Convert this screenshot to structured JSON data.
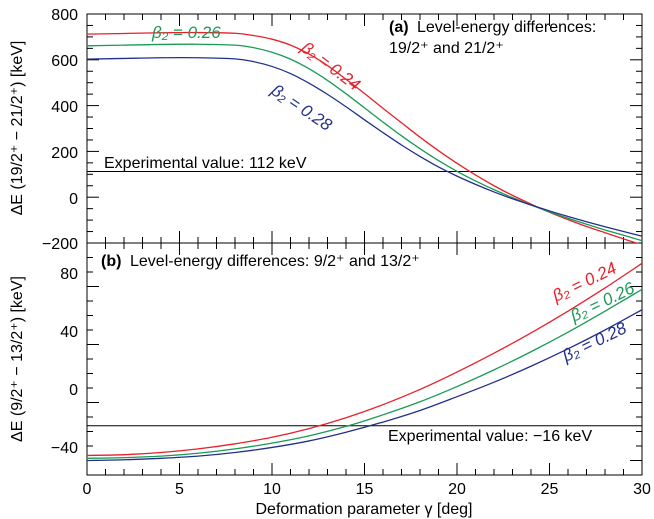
{
  "chart_data": [
    {
      "type": "line",
      "panel": "a",
      "title_bold": "(a)",
      "title_line1": "Level-energy differences:",
      "title_line2": "19/2⁺ and 21/2⁺",
      "ylabel": "ΔE (19/2⁺ − 21/2⁺) [keV]",
      "xlim": [
        0,
        30
      ],
      "ylim": [
        -200,
        800
      ],
      "y_ticks": [
        "−200",
        "0",
        "200",
        "400",
        "600",
        "800"
      ],
      "series": [
        {
          "name": "β₂ = 0.24",
          "color": "#e8202a",
          "x": [
            0,
            2,
            4,
            6,
            8,
            9,
            10,
            11,
            12,
            13,
            14,
            15,
            16,
            17,
            18,
            19,
            20,
            21,
            22,
            23,
            24,
            25,
            26,
            27,
            28,
            29,
            30
          ],
          "y": [
            712,
            715,
            718,
            719,
            716,
            706,
            690,
            664,
            625,
            575,
            515,
            453,
            388,
            325,
            262,
            203,
            148,
            97,
            50,
            8,
            -30,
            -66,
            -98,
            -128,
            -155,
            -182,
            -208
          ]
        },
        {
          "name": "β₂ = 0.26",
          "color": "#1a9a55",
          "x": [
            0,
            2,
            4,
            6,
            8,
            9,
            10,
            11,
            12,
            13,
            14,
            15,
            16,
            17,
            18,
            19,
            20,
            21,
            22,
            23,
            24,
            25,
            26,
            27,
            28,
            29,
            30
          ],
          "y": [
            661,
            664,
            667,
            668,
            664,
            653,
            633,
            603,
            561,
            510,
            452,
            390,
            328,
            268,
            212,
            160,
            113,
            71,
            33,
            -2,
            -34,
            -64,
            -92,
            -118,
            -143,
            -166,
            -190
          ]
        },
        {
          "name": "β₂ = 0.28",
          "color": "#22308c",
          "x": [
            0,
            2,
            4,
            6,
            8,
            9,
            10,
            11,
            12,
            13,
            14,
            15,
            16,
            17,
            18,
            19,
            20,
            21,
            22,
            23,
            24,
            25,
            26,
            27,
            28,
            29,
            30
          ],
          "y": [
            603,
            606,
            609,
            609,
            604,
            592,
            571,
            540,
            498,
            449,
            395,
            338,
            282,
            228,
            178,
            132,
            92,
            56,
            23,
            -7,
            -34,
            -60,
            -84,
            -107,
            -129,
            -150,
            -170
          ]
        }
      ],
      "reference_line": {
        "value": 112,
        "label": "Experimental value: 112 keV"
      },
      "curve_labels": [
        "β₂ = 0.26",
        "β₂ = 0.24",
        "β₂ = 0.28"
      ]
    },
    {
      "type": "line",
      "panel": "b",
      "title_bold": "(b)",
      "title_text": "Level-energy differences: 9/2⁺ and 13/2⁺",
      "ylabel": "ΔE (9/2⁺ − 13/2⁺) [keV]",
      "xlabel": "Deformation parameter γ [deg]",
      "xlim": [
        0,
        30
      ],
      "ylim": [
        -50,
        110
      ],
      "y_ticks": [
        "−40",
        "0",
        "40",
        "80"
      ],
      "x_ticks": [
        "0",
        "5",
        "10",
        "15",
        "20",
        "25",
        "30"
      ],
      "series": [
        {
          "name": "β₂ = 0.24",
          "color": "#e8202a",
          "x": [
            0,
            2,
            4,
            6,
            8,
            10,
            12,
            14,
            16,
            18,
            20,
            22,
            24,
            26,
            28,
            30
          ],
          "y": [
            -36.5,
            -36,
            -34.5,
            -32,
            -28.5,
            -24,
            -18,
            -10.5,
            -1.5,
            9,
            21,
            34,
            48,
            63,
            79,
            96
          ]
        },
        {
          "name": "β₂ = 0.26",
          "color": "#1a9a55",
          "x": [
            0,
            2,
            4,
            6,
            8,
            10,
            12,
            14,
            16,
            18,
            20,
            22,
            24,
            26,
            28,
            30
          ],
          "y": [
            -38.5,
            -38,
            -37,
            -35,
            -32,
            -28,
            -23,
            -16.5,
            -8.5,
            0.5,
            11,
            22.5,
            35,
            48.5,
            63,
            78
          ]
        },
        {
          "name": "β₂ = 0.28",
          "color": "#22308c",
          "x": [
            0,
            2,
            4,
            6,
            8,
            10,
            12,
            14,
            16,
            18,
            20,
            22,
            24,
            26,
            28,
            30
          ],
          "y": [
            -40,
            -39.5,
            -38.5,
            -37,
            -34.5,
            -31,
            -26.5,
            -20.5,
            -13.5,
            -5.5,
            4,
            14,
            25,
            37,
            50,
            64
          ]
        }
      ],
      "reference_line": {
        "value": -16,
        "label": "Experimental value: −16 keV"
      },
      "curve_labels": [
        "β₂ = 0.24",
        "β₂ = 0.26",
        "β₂ = 0.28"
      ]
    }
  ]
}
